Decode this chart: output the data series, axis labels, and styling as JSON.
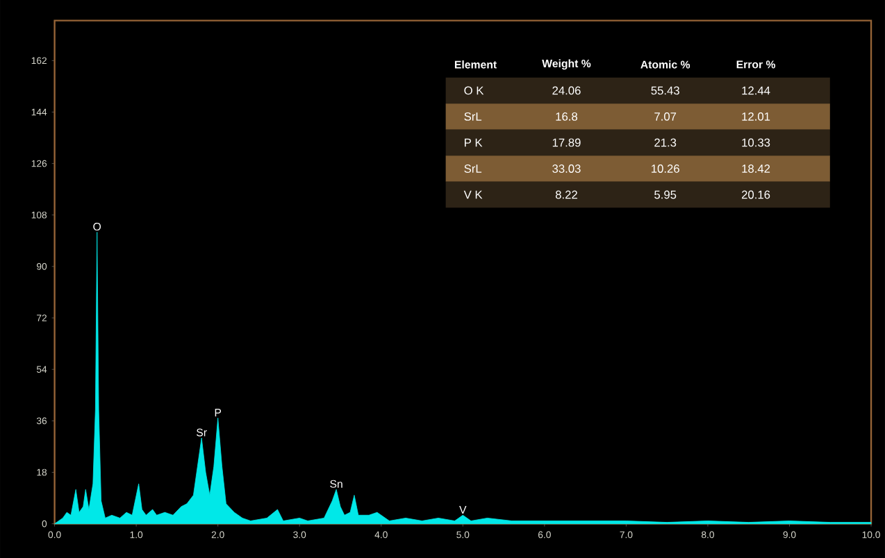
{
  "chart_data": {
    "type": "area",
    "color": "#00e8e8",
    "x": [
      0.0,
      0.1,
      0.15,
      0.2,
      0.26,
      0.3,
      0.35,
      0.38,
      0.42,
      0.47,
      0.5,
      0.52,
      0.54,
      0.57,
      0.62,
      0.7,
      0.8,
      0.88,
      0.95,
      1.03,
      1.07,
      1.12,
      1.2,
      1.25,
      1.35,
      1.45,
      1.55,
      1.62,
      1.7,
      1.75,
      1.8,
      1.85,
      1.9,
      1.95,
      2.0,
      2.05,
      2.1,
      2.2,
      2.3,
      2.4,
      2.6,
      2.73,
      2.8,
      3.0,
      3.1,
      3.3,
      3.4,
      3.45,
      3.5,
      3.55,
      3.62,
      3.67,
      3.72,
      3.85,
      3.95,
      4.1,
      4.3,
      4.5,
      4.7,
      4.9,
      5.0,
      5.1,
      5.3,
      5.6,
      6.0,
      6.5,
      7.0,
      7.5,
      8.0,
      8.5,
      9.0,
      9.5,
      10.0
    ],
    "values": [
      0,
      2,
      4,
      3,
      12,
      4,
      6,
      12,
      5,
      14,
      40,
      102,
      40,
      8,
      2,
      3,
      2,
      4,
      3,
      14,
      5,
      3,
      5,
      3,
      4,
      3,
      6,
      7,
      10,
      20,
      30,
      18,
      10,
      20,
      37,
      20,
      7,
      4,
      2,
      1,
      2,
      5,
      1,
      2,
      1,
      2,
      8,
      12,
      6,
      3,
      4,
      10,
      3,
      3,
      4,
      1,
      2,
      1,
      2,
      1,
      3,
      1,
      2,
      1,
      1,
      1,
      1,
      0.5,
      1,
      0.5,
      1,
      0.5,
      0.5
    ],
    "xlim": [
      0,
      10
    ],
    "ylim": [
      0,
      176
    ],
    "xticks": [
      {
        "value": 0,
        "label": "0.0"
      },
      {
        "value": 1,
        "label": "1.0"
      },
      {
        "value": 2,
        "label": "2.0"
      },
      {
        "value": 3,
        "label": "3.0"
      },
      {
        "value": 4,
        "label": "4.0"
      },
      {
        "value": 5,
        "label": "5.0"
      },
      {
        "value": 6,
        "label": "6.0"
      },
      {
        "value": 7,
        "label": "7.0"
      },
      {
        "value": 8,
        "label": "8.0"
      },
      {
        "value": 9,
        "label": "9.0"
      },
      {
        "value": 10,
        "label": "10.0"
      }
    ],
    "yticks": [
      0,
      18,
      36,
      54,
      72,
      90,
      108,
      126,
      144,
      162
    ],
    "annotations": [
      {
        "text": "O",
        "x": 0.52,
        "y": 102
      },
      {
        "text": "Sr",
        "x": 1.8,
        "y": 30
      },
      {
        "text": "P",
        "x": 2.0,
        "y": 37
      },
      {
        "text": "Sn",
        "x": 3.45,
        "y": 12
      },
      {
        "text": "V",
        "x": 5.0,
        "y": 3
      },
      "Element",
      "Weight %",
      "Atomic %",
      "Error %",
      "O K",
      "24.06",
      "55.43",
      "12.44",
      "SrL",
      "16.8",
      "7.07",
      "12.01",
      "P K",
      "17.89",
      "21.3",
      "10.33",
      "SrL",
      "33.03",
      "10.26",
      "18.42",
      "V K",
      "8.22",
      "5.95",
      "20.16"
    ]
  }
}
